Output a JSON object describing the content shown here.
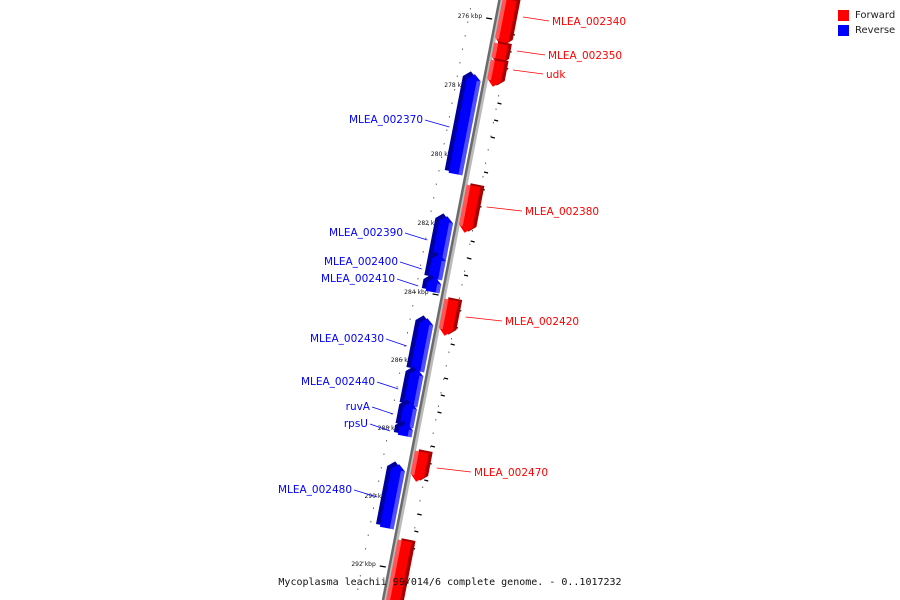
{
  "legend": {
    "forward": {
      "label": "Forward",
      "color": "#ff0000"
    },
    "reverse": {
      "label": "Reverse",
      "color": "#0000ff"
    }
  },
  "caption": "Mycoplasma leachii 99/014/6 complete genome. - 0..1017232",
  "ticks": [
    "276 kbp",
    "278 kbp",
    "280 kbp",
    "282 kbp",
    "284 kbp",
    "286 kbp",
    "288 kbp",
    "290 kbp",
    "292 kbp"
  ],
  "genes": [
    {
      "name": "MLEA_002340",
      "strand": "forward"
    },
    {
      "name": "MLEA_002350",
      "strand": "forward"
    },
    {
      "name": "udk",
      "strand": "forward"
    },
    {
      "name": "MLEA_002370",
      "strand": "reverse"
    },
    {
      "name": "MLEA_002380",
      "strand": "forward"
    },
    {
      "name": "MLEA_002390",
      "strand": "reverse"
    },
    {
      "name": "MLEA_002400",
      "strand": "reverse"
    },
    {
      "name": "MLEA_002410",
      "strand": "reverse"
    },
    {
      "name": "MLEA_002420",
      "strand": "forward"
    },
    {
      "name": "MLEA_002430",
      "strand": "reverse"
    },
    {
      "name": "MLEA_002440",
      "strand": "reverse"
    },
    {
      "name": "ruvA",
      "strand": "reverse"
    },
    {
      "name": "rpsU",
      "strand": "reverse"
    },
    {
      "name": "MLEA_002470",
      "strand": "forward"
    },
    {
      "name": "MLEA_002480",
      "strand": "reverse"
    },
    {
      "name": "",
      "strand": "forward"
    }
  ]
}
